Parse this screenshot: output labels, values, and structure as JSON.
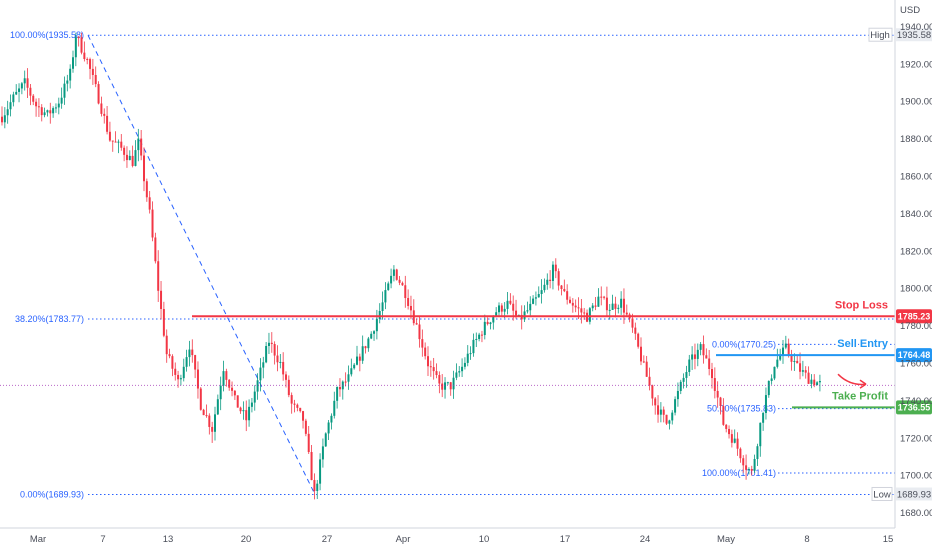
{
  "chart_data": {
    "type": "candlestick",
    "currency": "USD",
    "y_ticks": [
      1680,
      1700,
      1720,
      1740,
      1760,
      1780,
      1800,
      1820,
      1840,
      1860,
      1880,
      1900,
      1920,
      1940
    ],
    "ylim": [
      1672,
      1948
    ],
    "x_ticks": [
      "Mar",
      "7",
      "13",
      "20",
      "27",
      "Apr",
      "10",
      "17",
      "24",
      "May",
      "8",
      "15"
    ],
    "grid": false,
    "price_path": [
      [
        0,
        1892
      ],
      [
        4,
        1902
      ],
      [
        8,
        1910
      ],
      [
        12,
        1898
      ],
      [
        16,
        1893
      ],
      [
        20,
        1900
      ],
      [
        24,
        1915
      ],
      [
        26,
        1935.58
      ],
      [
        30,
        1922
      ],
      [
        34,
        1902
      ],
      [
        38,
        1880
      ],
      [
        42,
        1875
      ],
      [
        46,
        1868
      ],
      [
        48,
        1878
      ],
      [
        52,
        1840
      ],
      [
        55,
        1800
      ],
      [
        58,
        1765
      ],
      [
        62,
        1750
      ],
      [
        66,
        1770
      ],
      [
        70,
        1738
      ],
      [
        74,
        1725
      ],
      [
        78,
        1758
      ],
      [
        82,
        1740
      ],
      [
        86,
        1730
      ],
      [
        90,
        1750
      ],
      [
        94,
        1772
      ],
      [
        98,
        1760
      ],
      [
        102,
        1738
      ],
      [
        106,
        1730
      ],
      [
        110,
        1689.93
      ],
      [
        114,
        1722
      ],
      [
        118,
        1745
      ],
      [
        122,
        1752
      ],
      [
        126,
        1764
      ],
      [
        130,
        1776
      ],
      [
        134,
        1792
      ],
      [
        138,
        1810
      ],
      [
        142,
        1798
      ],
      [
        146,
        1780
      ],
      [
        150,
        1760
      ],
      [
        154,
        1748
      ],
      [
        158,
        1748
      ],
      [
        162,
        1758
      ],
      [
        166,
        1770
      ],
      [
        170,
        1780
      ],
      [
        174,
        1788
      ],
      [
        178,
        1792
      ],
      [
        182,
        1783
      ],
      [
        186,
        1790
      ],
      [
        190,
        1798
      ],
      [
        194,
        1810
      ],
      [
        198,
        1797
      ],
      [
        202,
        1790
      ],
      [
        206,
        1785
      ],
      [
        210,
        1795
      ],
      [
        214,
        1790
      ],
      [
        218,
        1793
      ],
      [
        222,
        1778
      ],
      [
        226,
        1758
      ],
      [
        230,
        1738
      ],
      [
        234,
        1728
      ],
      [
        238,
        1744
      ],
      [
        242,
        1760
      ],
      [
        246,
        1768
      ],
      [
        250,
        1755
      ],
      [
        254,
        1728
      ],
      [
        258,
        1718
      ],
      [
        262,
        1705
      ],
      [
        264,
        1701.41
      ],
      [
        268,
        1736
      ],
      [
        272,
        1760
      ],
      [
        276,
        1768
      ],
      [
        280,
        1758
      ],
      [
        284,
        1752
      ],
      [
        288,
        1749
      ]
    ],
    "high": {
      "label": "High",
      "value": "1935.58"
    },
    "low": {
      "label": "Low",
      "value": "1689.93"
    },
    "last_close": 1748.3,
    "fib_large": [
      {
        "label": "100.00%(1935.58)",
        "value": 1935.58
      },
      {
        "label": "38.20%(1783.77)",
        "value": 1783.77
      },
      {
        "label": "0.00%(1689.93)",
        "value": 1689.93
      }
    ],
    "fib_small": [
      {
        "label": "0.00%(1770.25)",
        "value": 1770.25
      },
      {
        "label": "50.00%(1735.83)",
        "value": 1735.83
      },
      {
        "label": "100.00%(1701.41)",
        "value": 1701.41
      }
    ],
    "levels": [
      {
        "name": "Stop Loss",
        "value": "1785.23",
        "color": "#f23645"
      },
      {
        "name": "Sell Entry",
        "value": "1764.48",
        "color": "#2196f3"
      },
      {
        "name": "Take Profit",
        "value": "1736.55",
        "color": "#4caf50"
      }
    ],
    "colors": {
      "up": "#089981",
      "down": "#f23645",
      "fib": "#2962ff",
      "last": "#9c27b0"
    }
  }
}
